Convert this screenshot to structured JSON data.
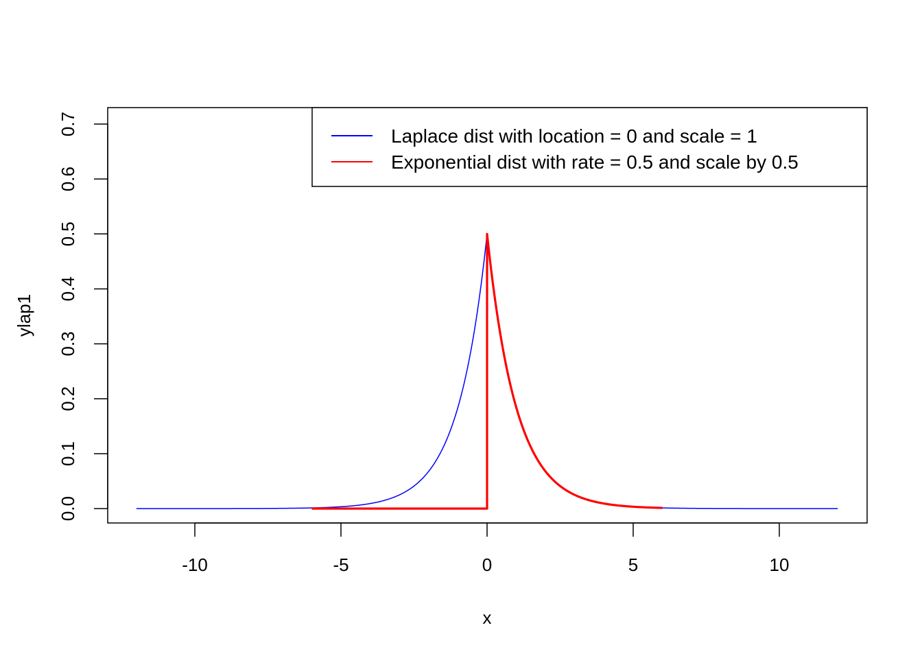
{
  "chart_data": {
    "type": "line",
    "title": "",
    "xlabel": "x",
    "ylabel": "ylap1",
    "xlim": [
      -13,
      13
    ],
    "ylim": [
      0,
      0.7
    ],
    "x_ticks": [
      -10,
      -5,
      0,
      5,
      10
    ],
    "x_tick_labels": [
      "-10",
      "-5",
      "0",
      "5",
      "10"
    ],
    "y_ticks": [
      0,
      0.1,
      0.2,
      0.3,
      0.4,
      0.5,
      0.6,
      0.7
    ],
    "y_tick_labels": [
      "0.0",
      "0.1",
      "0.2",
      "0.3",
      "0.4",
      "0.5",
      "0.6",
      "0.7"
    ],
    "grid": false,
    "legend": {
      "position": "top-right",
      "entries": [
        {
          "label": "Laplace dist with location = 0 and scale = 1",
          "color": "#0000ff"
        },
        {
          "label": "Exponential dist with rate = 0.5 and scale by 0.5",
          "color": "#ff0000"
        }
      ]
    },
    "series": [
      {
        "color": "#0000ff",
        "x": [
          -12,
          -10,
          -8,
          -6,
          -5,
          -4,
          -3,
          -2.5,
          -2,
          -1.5,
          -1,
          -0.75,
          -0.5,
          -0.25,
          0,
          0.25,
          0.5,
          0.75,
          1,
          1.5,
          2,
          2.5,
          3,
          4,
          5,
          6,
          8,
          10,
          12
        ],
        "y": [
          0.0,
          2e-05,
          0.0002,
          0.0012,
          0.0034,
          0.0092,
          0.0249,
          0.041,
          0.0677,
          0.1116,
          0.1839,
          0.2362,
          0.3033,
          0.3894,
          0.5,
          0.3894,
          0.3033,
          0.2362,
          0.1839,
          0.1116,
          0.0677,
          0.041,
          0.0249,
          0.0092,
          0.0034,
          0.0012,
          0.0002,
          2e-05,
          0.0
        ]
      },
      {
        "color": "#ff0000",
        "x": [
          -6,
          -3,
          0,
          0,
          0.25,
          0.5,
          0.75,
          1,
          1.5,
          2,
          2.5,
          3,
          3.5,
          4,
          5,
          6
        ],
        "y": [
          0,
          0,
          0,
          0.5,
          0.3894,
          0.3033,
          0.2362,
          0.1839,
          0.1116,
          0.0677,
          0.041,
          0.0249,
          0.0151,
          0.0092,
          0.0034,
          0.0012
        ]
      }
    ]
  }
}
